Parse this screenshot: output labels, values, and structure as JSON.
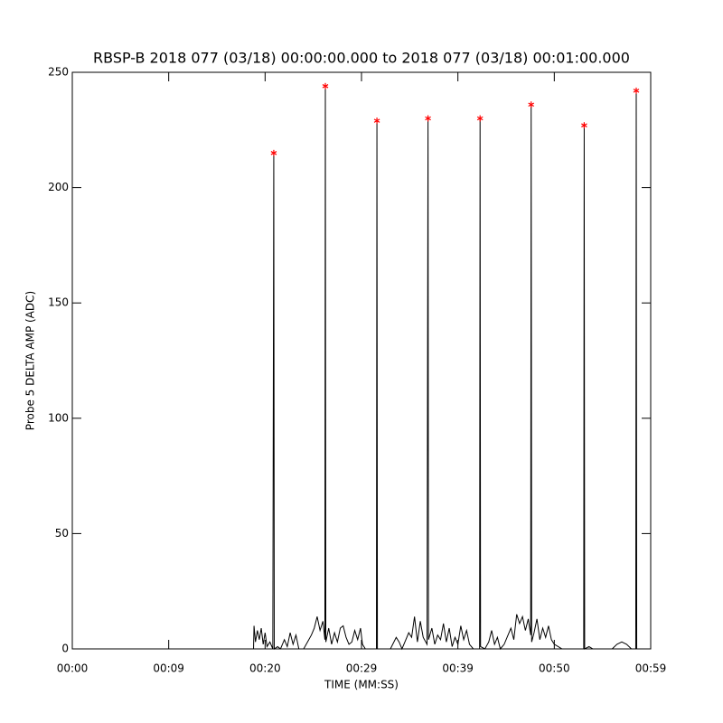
{
  "chart_data": {
    "type": "line",
    "title": "RBSP-B 2018 077 (03/18) 00:00:00.000 to 2018 077 (03/18) 00:01:00.000",
    "x_label": "TIME (MM:SS)",
    "y_label": "Probe 5 DELTA AMP (ADC)",
    "xlim": [
      0,
      60
    ],
    "xticks": [
      {
        "value": 0,
        "label": "00:00"
      },
      {
        "value": 10,
        "label": "00:09"
      },
      {
        "value": 20,
        "label": "00:20"
      },
      {
        "value": 30,
        "label": "00:29"
      },
      {
        "value": 40,
        "label": "00:39"
      },
      {
        "value": 50,
        "label": "00:50"
      },
      {
        "value": 60,
        "label": "00:59"
      }
    ],
    "ylim": [
      0,
      250
    ],
    "yticks": [
      0,
      50,
      100,
      150,
      200,
      250
    ],
    "series": [
      {
        "color": "#000000",
        "x": [
          0,
          18.8,
          18.85,
          19.0,
          19.2,
          19.4,
          19.6,
          19.8,
          20.0,
          20.2,
          20.5,
          20.8,
          20.9,
          20.95,
          21.3,
          21.6,
          22.0,
          22.3,
          22.6,
          22.9,
          23.2,
          23.5,
          24.0,
          24.4,
          24.8,
          25.1,
          25.4,
          25.7,
          26.0,
          26.2,
          26.25,
          26.3,
          26.6,
          26.9,
          27.2,
          27.5,
          27.8,
          28.1,
          28.4,
          28.7,
          29.0,
          29.3,
          29.6,
          29.9,
          30.1,
          30.4,
          31.0,
          31.55,
          31.6,
          31.65,
          32.0,
          32.5,
          33.0,
          33.6,
          33.9,
          34.2,
          34.6,
          34.9,
          35.2,
          35.5,
          35.8,
          36.1,
          36.4,
          36.8,
          36.9,
          36.95,
          37.3,
          37.6,
          37.9,
          38.2,
          38.5,
          38.8,
          39.1,
          39.4,
          39.7,
          40.0,
          40.3,
          40.6,
          40.9,
          41.2,
          41.6,
          42.25,
          42.3,
          42.35,
          42.8,
          43.2,
          43.5,
          43.8,
          44.1,
          44.4,
          44.8,
          45.2,
          45.5,
          45.8,
          46.1,
          46.4,
          46.7,
          47.0,
          47.3,
          47.55,
          47.6,
          47.65,
          47.9,
          48.2,
          48.5,
          48.8,
          49.1,
          49.4,
          49.7,
          50.0,
          50.4,
          50.8,
          52.0,
          53.05,
          53.1,
          53.15,
          53.6,
          54.0,
          56.0,
          56.5,
          57.0,
          57.5,
          58.0,
          58.45,
          58.5,
          58.55,
          59.0
        ],
        "values": [
          0,
          0,
          10,
          3,
          8,
          4,
          9,
          2,
          7,
          1,
          3,
          0,
          215,
          0,
          1,
          0,
          4,
          1,
          7,
          2,
          6,
          0,
          0,
          3,
          6,
          9,
          14,
          8,
          12,
          4,
          244,
          3,
          9,
          2,
          7,
          3,
          9,
          10,
          5,
          2,
          3,
          8,
          4,
          9,
          2,
          0,
          0,
          0,
          229,
          0,
          0,
          0,
          0,
          5,
          3,
          0,
          4,
          7,
          5,
          14,
          3,
          12,
          5,
          2,
          230,
          4,
          9,
          2,
          6,
          4,
          11,
          3,
          9,
          1,
          5,
          2,
          10,
          4,
          8,
          2,
          0,
          0,
          230,
          1,
          0,
          3,
          8,
          2,
          5,
          0,
          2,
          6,
          9,
          4,
          15,
          11,
          14,
          8,
          13,
          6,
          236,
          3,
          7,
          13,
          4,
          9,
          5,
          10,
          4,
          2,
          1,
          0,
          0,
          0,
          227,
          0,
          1,
          0,
          0,
          2,
          3,
          2,
          0,
          0,
          242,
          0,
          0
        ]
      },
      {
        "color": "#ff0000",
        "marker": "asterisk",
        "x": [
          20.9,
          26.25,
          31.6,
          36.9,
          42.3,
          47.6,
          53.1,
          58.5
        ],
        "values": [
          215,
          244,
          229,
          230,
          230,
          236,
          227,
          242
        ]
      }
    ]
  }
}
